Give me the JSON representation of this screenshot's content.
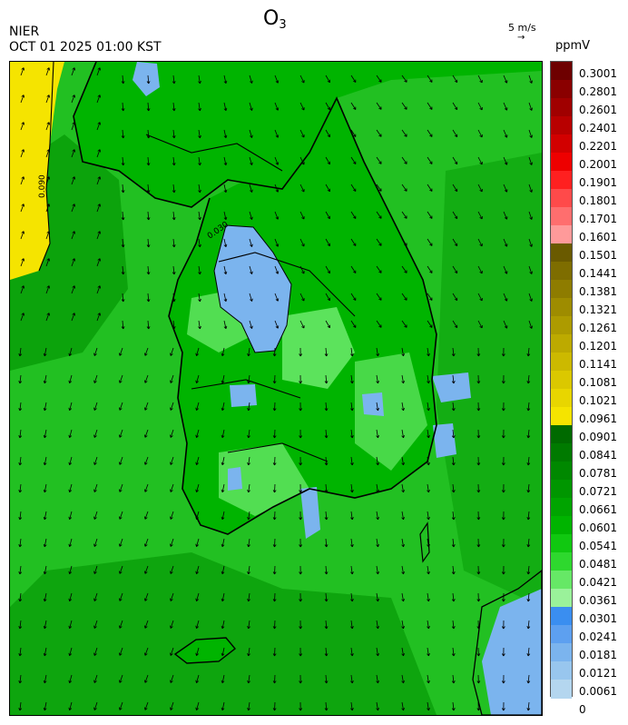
{
  "title": {
    "species": "O",
    "subscript": "3"
  },
  "agency": "NIER",
  "timestamp": "OCT 01 2025 01:00 KST",
  "wind_reference": {
    "label": "5 m/s",
    "arrow": "→"
  },
  "colorbar": {
    "units": "ppmV",
    "labels": [
      "0.3001",
      "0.2801",
      "0.2601",
      "0.2401",
      "0.2201",
      "0.2001",
      "0.1901",
      "0.1801",
      "0.1701",
      "0.1601",
      "0.1501",
      "0.1441",
      "0.1381",
      "0.1321",
      "0.1261",
      "0.1201",
      "0.1141",
      "0.1081",
      "0.1021",
      "0.0961",
      "0.0901",
      "0.0841",
      "0.0781",
      "0.0721",
      "0.0661",
      "0.0601",
      "0.0541",
      "0.0481",
      "0.0421",
      "0.0361",
      "0.0301",
      "0.0241",
      "0.0181",
      "0.0121",
      "0.0061",
      "0"
    ],
    "colors": [
      "#6e0000",
      "#8a0000",
      "#a00000",
      "#b80000",
      "#d20000",
      "#ee0000",
      "#ff2020",
      "#ff4a4a",
      "#ff6e6e",
      "#ff9a9a",
      "#6a5a00",
      "#7e6d00",
      "#8e7c00",
      "#9e8c00",
      "#ad9b00",
      "#bdaa00",
      "#ccb900",
      "#dbc800",
      "#e8d600",
      "#f5e400",
      "#006a00",
      "#007a00",
      "#008800",
      "#009600",
      "#00a400",
      "#00b400",
      "#10c810",
      "#2ed82e",
      "#66e866",
      "#9af29a",
      "#3a8ef0",
      "#5da0f0",
      "#7bb4ee",
      "#98c6ee",
      "#b4d6ef",
      "#ffffff"
    ]
  },
  "map": {
    "contour_labels": [
      "0.090",
      "0.030"
    ],
    "field_colors": {
      "sea_base": "#22c022",
      "sea_dark": "#0aa00a",
      "land_base": "#00b400",
      "land_light": "#66e866",
      "low_blue": "#7bb4ee",
      "high_yellow": "#f5e400",
      "coast": "#000000"
    }
  }
}
